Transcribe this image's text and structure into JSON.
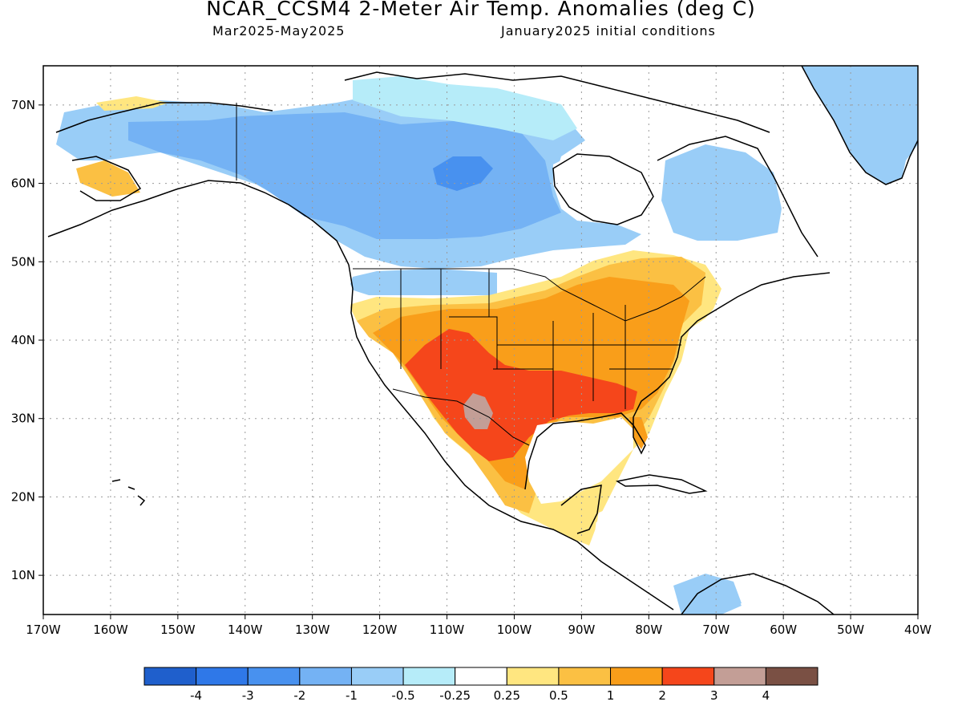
{
  "title": "NCAR_CCSM4 2-Meter Air Temp. Anomalies (deg C)",
  "subtitle_left": "Mar2025-May2025",
  "subtitle_right": "January2025 initial conditions",
  "map": {
    "lon_range": [
      -170,
      -40
    ],
    "lat_range": [
      5,
      75
    ],
    "lon_ticks": [
      "170W",
      "160W",
      "150W",
      "140W",
      "130W",
      "120W",
      "110W",
      "100W",
      "90W",
      "80W",
      "70W",
      "60W",
      "50W",
      "40W"
    ],
    "lat_ticks": [
      "10N",
      "20N",
      "30N",
      "40N",
      "50N",
      "60N",
      "70N"
    ],
    "gridlines": "dotted"
  },
  "legend": {
    "colors": [
      "#1f5fcc",
      "#2f78e8",
      "#4891ef",
      "#74b2f4",
      "#99cdf7",
      "#b6ecf9",
      "#ffffff",
      "#ffe680",
      "#fbc043",
      "#f99e1a",
      "#f5461b",
      "#c39e96",
      "#7a5044"
    ],
    "labels": [
      "-4",
      "-3",
      "-2",
      "-1",
      "-0.5",
      "-0.25",
      "0.25",
      "0.5",
      "1",
      "2",
      "3",
      "4"
    ]
  },
  "regions": {
    "lightblue": "#99cdf7",
    "blue": "#74b2f4",
    "deepblue": "#4891ef",
    "paleblue": "#b6ecf9",
    "yellow": "#ffe680",
    "lightorange": "#fbc043",
    "orange": "#f99e1a",
    "red": "#f5461b",
    "brown": "#c39e96"
  }
}
